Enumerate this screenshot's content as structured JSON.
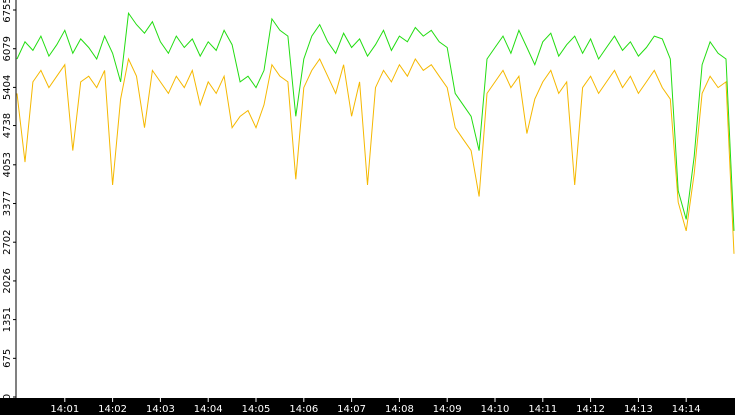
{
  "chart_data": {
    "type": "line",
    "xlim": [
      0,
      15
    ],
    "xticks": [
      {
        "value": 1,
        "label": "14:01"
      },
      {
        "value": 2,
        "label": "14:02"
      },
      {
        "value": 3,
        "label": "14:03"
      },
      {
        "value": 4,
        "label": "14:04"
      },
      {
        "value": 5,
        "label": "14:05"
      },
      {
        "value": 6,
        "label": "14:06"
      },
      {
        "value": 7,
        "label": "14:07"
      },
      {
        "value": 8,
        "label": "14:08"
      },
      {
        "value": 9,
        "label": "14:09"
      },
      {
        "value": 10,
        "label": "14:10"
      },
      {
        "value": 11,
        "label": "14:11"
      },
      {
        "value": 12,
        "label": "14:12"
      },
      {
        "value": 13,
        "label": "14:13"
      },
      {
        "value": 14,
        "label": "14:14"
      }
    ],
    "ylim": [
      0,
      6755
    ],
    "yticks": [
      0,
      675,
      1351,
      2026,
      2702,
      3377,
      4053,
      4738,
      5404,
      6079,
      6755
    ],
    "series": [
      {
        "color": "#22dd11",
        "values": [
          5900,
          6200,
          6050,
          6300,
          5950,
          6150,
          6400,
          6000,
          6250,
          6100,
          5900,
          6300,
          6000,
          5500,
          6700,
          6500,
          6350,
          6550,
          6200,
          6000,
          6300,
          6100,
          6250,
          5950,
          6200,
          6050,
          6400,
          6150,
          5500,
          5600,
          5400,
          5700,
          6600,
          6400,
          6300,
          4900,
          5900,
          6300,
          6500,
          6200,
          6000,
          6350,
          6100,
          6250,
          5950,
          6150,
          6400,
          6050,
          6300,
          6200,
          6450,
          6300,
          6400,
          6200,
          6100,
          5300,
          5100,
          4900,
          4300,
          5900,
          6100,
          6300,
          6000,
          6400,
          6100,
          5800,
          6200,
          6350,
          5950,
          6150,
          6300,
          6000,
          6250,
          5900,
          6100,
          6300,
          6050,
          6200,
          5950,
          6100,
          6300,
          6250,
          5900,
          3600,
          3100,
          4200,
          5800,
          6200,
          6000,
          5900,
          2900
        ]
      },
      {
        "color": "#f5b800",
        "values": [
          5300,
          4100,
          5500,
          5700,
          5400,
          5600,
          5800,
          4300,
          5500,
          5600,
          5400,
          5700,
          3700,
          5200,
          5900,
          5600,
          4700,
          5700,
          5500,
          5300,
          5600,
          5400,
          5700,
          5100,
          5500,
          5300,
          5600,
          4700,
          4900,
          5000,
          4700,
          5100,
          5800,
          5600,
          5500,
          3800,
          5400,
          5700,
          5900,
          5600,
          5300,
          5800,
          4900,
          5500,
          3700,
          5400,
          5700,
          5500,
          5800,
          5600,
          5900,
          5700,
          5800,
          5600,
          5400,
          4700,
          4500,
          4300,
          3500,
          5300,
          5500,
          5700,
          5400,
          5600,
          4600,
          5200,
          5500,
          5700,
          5300,
          5500,
          3700,
          5400,
          5600,
          5300,
          5500,
          5700,
          5400,
          5600,
          5300,
          5500,
          5700,
          5400,
          5200,
          3400,
          2900,
          3900,
          5300,
          5600,
          5400,
          5500,
          2500
        ]
      }
    ]
  }
}
